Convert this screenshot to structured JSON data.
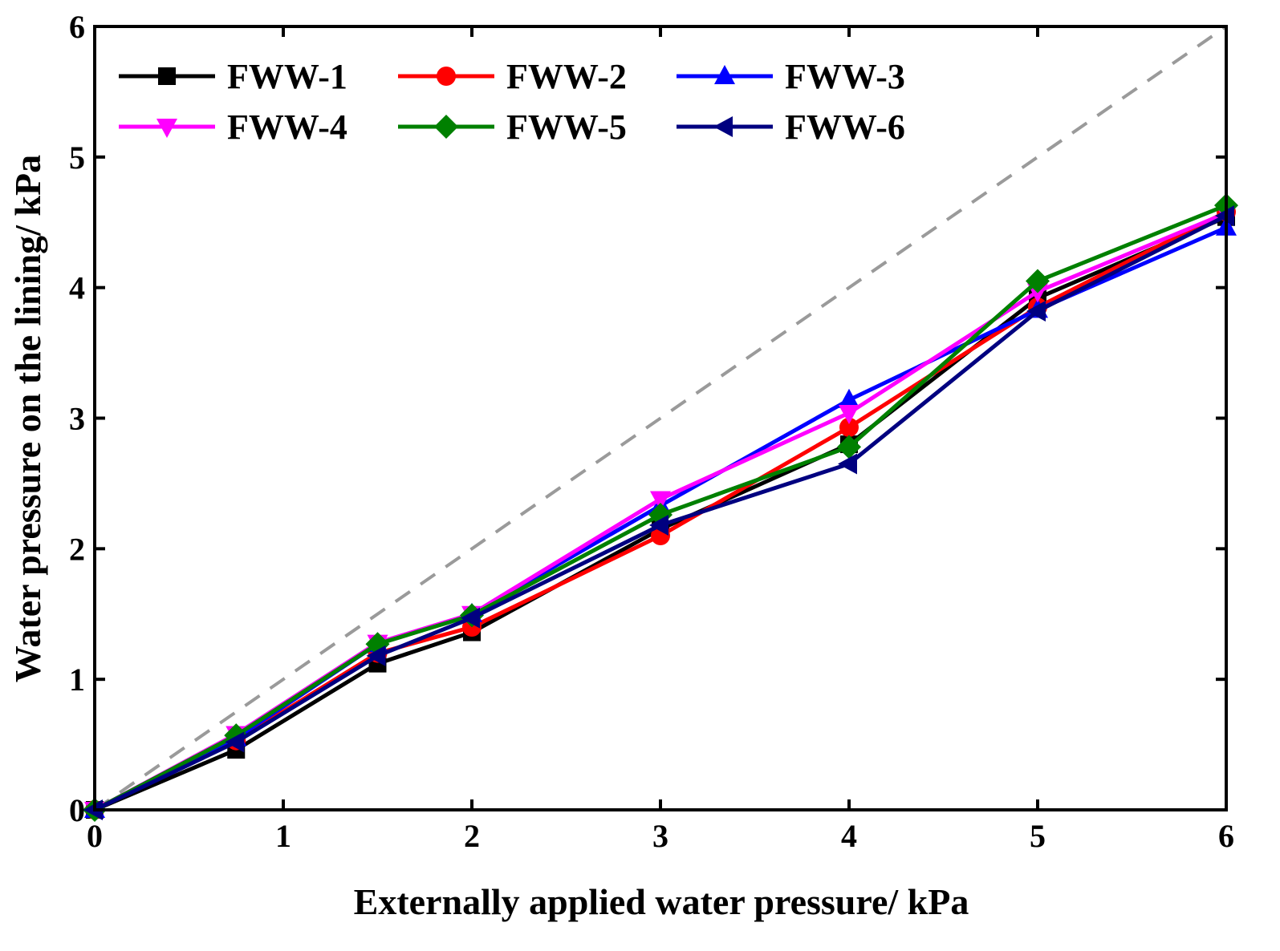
{
  "chart_data": {
    "type": "line",
    "title": "",
    "xlabel": "Externally applied water pressure/ kPa",
    "ylabel": "Water pressure on the lining/ kPa",
    "xlim": [
      0,
      6
    ],
    "ylim": [
      0,
      6
    ],
    "xticks": [
      "0",
      "1",
      "2",
      "3",
      "4",
      "5",
      "6"
    ],
    "yticks": [
      "0",
      "1",
      "2",
      "3",
      "4",
      "5",
      "6"
    ],
    "grid": false,
    "legend_position": "top-left",
    "reference_line": {
      "name": "y = x",
      "x": [
        0,
        6
      ],
      "y": [
        0,
        6
      ],
      "color": "#9a9a9a",
      "style": "dashed"
    },
    "series": [
      {
        "name": "FWW-1",
        "color": "#000000",
        "marker": "square",
        "x": [
          0,
          0.75,
          1.5,
          2,
          3,
          4,
          5,
          6
        ],
        "y": [
          0,
          0.46,
          1.12,
          1.36,
          2.15,
          2.8,
          3.92,
          4.54
        ]
      },
      {
        "name": "FWW-2",
        "color": "#ff0000",
        "marker": "circle",
        "x": [
          0,
          0.75,
          1.5,
          2,
          3,
          4,
          5,
          6
        ],
        "y": [
          0,
          0.53,
          1.2,
          1.4,
          2.1,
          2.93,
          3.85,
          4.58
        ]
      },
      {
        "name": "FWW-3",
        "color": "#0000ff",
        "marker": "triangle-up",
        "x": [
          0,
          0.75,
          1.5,
          2,
          3,
          4,
          5,
          6
        ],
        "y": [
          0,
          0.55,
          1.27,
          1.5,
          2.33,
          3.14,
          3.83,
          4.46
        ]
      },
      {
        "name": "FWW-4",
        "color": "#ff00ff",
        "marker": "triangle-down",
        "x": [
          0,
          0.75,
          1.5,
          2,
          3,
          4,
          5,
          6
        ],
        "y": [
          0,
          0.58,
          1.28,
          1.5,
          2.38,
          3.04,
          3.97,
          4.57
        ]
      },
      {
        "name": "FWW-5",
        "color": "#008000",
        "marker": "diamond",
        "x": [
          0,
          0.75,
          1.5,
          2,
          3,
          4,
          5,
          6
        ],
        "y": [
          0,
          0.57,
          1.27,
          1.49,
          2.26,
          2.78,
          4.05,
          4.63
        ]
      },
      {
        "name": "FWW-6",
        "color": "#000080",
        "marker": "triangle-left",
        "x": [
          0,
          0.75,
          1.5,
          2,
          3,
          4,
          5,
          6
        ],
        "y": [
          0,
          0.52,
          1.18,
          1.47,
          2.18,
          2.65,
          3.82,
          4.55
        ]
      }
    ]
  }
}
